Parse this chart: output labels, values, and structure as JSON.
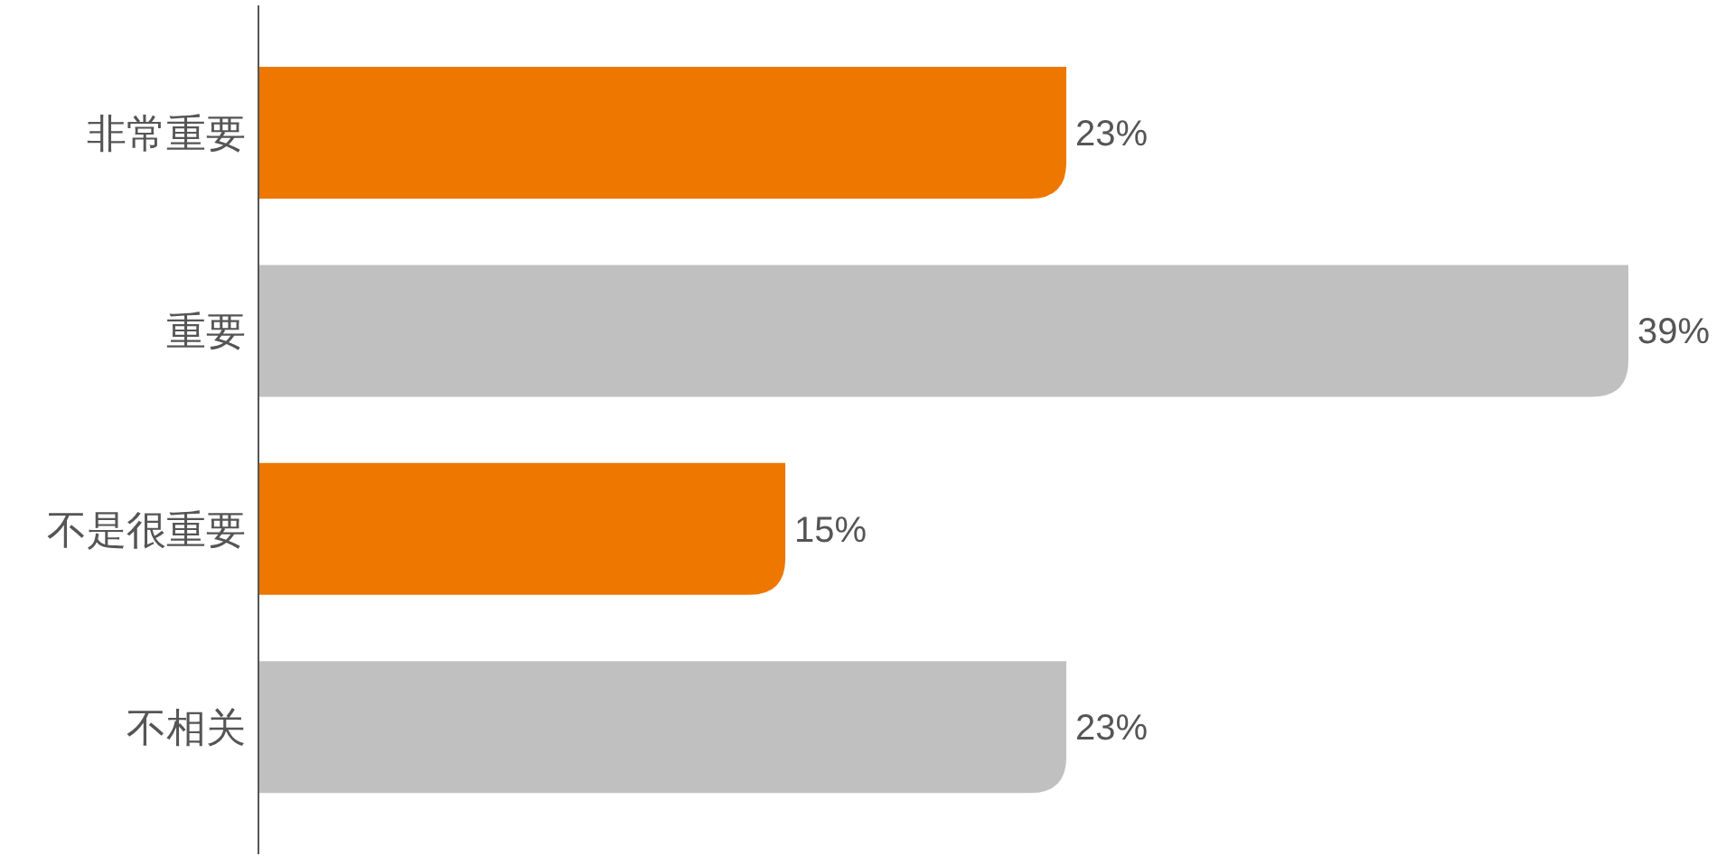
{
  "chart_data": {
    "type": "bar",
    "orientation": "horizontal",
    "categories": [
      "非常重要",
      "重要",
      "不是很重要",
      "不相关"
    ],
    "values": [
      23,
      39,
      15,
      23
    ],
    "colors": [
      "#ee7700",
      "#bfc0bf",
      "#ee7700",
      "#bfc0bf"
    ],
    "value_labels": [
      "23%",
      "39%",
      "15%",
      "23%"
    ]
  }
}
